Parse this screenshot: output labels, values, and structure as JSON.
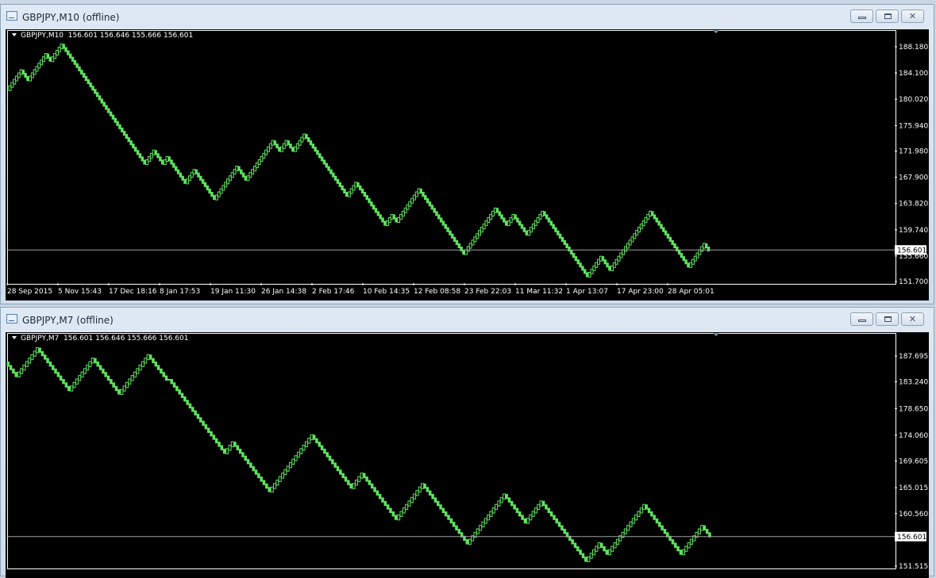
{
  "windows": [
    {
      "title": "GBPJPY,M10 (offline)",
      "header": "GBPJPY,M10  156.601 156.646 155.666 156.601",
      "buttons": {
        "minimize": "minimize",
        "maximize": "restore",
        "close": "close"
      }
    },
    {
      "title": "GBPJPY,M7 (offline)",
      "header": "GBPJPY,M7  156.601 156.646 155.666 156.601",
      "buttons": {
        "minimize": "minimize",
        "maximize": "restore",
        "close": "close"
      }
    }
  ],
  "colors": {
    "background": "#000000",
    "brick": "#5fe35f",
    "price_line": "#a0a0a0",
    "axis": "#ffffff"
  },
  "chart_data": [
    {
      "type": "renko",
      "symbol": "GBPJPY",
      "timeframe": "M10",
      "brick_size": 0.5,
      "last_price": "156.601",
      "y_ticks": [
        "188.180",
        "184.100",
        "180.020",
        "175.940",
        "171.980",
        "167.900",
        "163.820",
        "159.740",
        "155.660",
        "151.700"
      ],
      "x_ticks": [
        "28 Sep 2015",
        "5 Nov 15:43",
        "17 Dec 18:16",
        "8 Jan 17:53",
        "19 Jan 11:30",
        "26 Jan 14:38",
        "2 Feb 17:46",
        "10 Feb 14:35",
        "12 Feb 08:58",
        "23 Feb 22:03",
        "11 Mar 11:32",
        "1 Apr 13:07",
        "17 Apr 23:00",
        "28 Apr 05:01"
      ],
      "turning_points": [
        181.5,
        184.5,
        183.0,
        187.0,
        186.0,
        188.5,
        172.0,
        170.0,
        172.0,
        170.0,
        171.0,
        167.0,
        169.0,
        164.5,
        169.5,
        167.5,
        173.5,
        172.0,
        173.5,
        172.0,
        174.5,
        165.0,
        167.0,
        160.5,
        162.0,
        161.0,
        166.0,
        156.0,
        163.0,
        160.5,
        162.0,
        159.0,
        162.5,
        152.5,
        155.5,
        153.5,
        162.5,
        154.0,
        157.5,
        156.5
      ]
    },
    {
      "type": "renko",
      "symbol": "GBPJPY",
      "timeframe": "M7",
      "brick_size": 0.6,
      "last_price": "156.601",
      "y_ticks": [
        "187.695",
        "183.240",
        "178.650",
        "174.060",
        "169.605",
        "165.015",
        "160.560",
        "151.515"
      ],
      "turning_points": [
        186.6,
        184.2,
        189.0,
        181.8,
        187.2,
        183.6,
        181.2,
        187.8,
        185.4,
        183.6,
        183.6,
        171.0,
        172.8,
        166.2,
        164.4,
        174.0,
        165.0,
        167.4,
        159.6,
        165.6,
        155.4,
        163.8,
        159.0,
        162.6,
        152.4,
        155.4,
        153.6,
        162.0,
        153.6,
        158.4,
        156.6
      ]
    }
  ]
}
